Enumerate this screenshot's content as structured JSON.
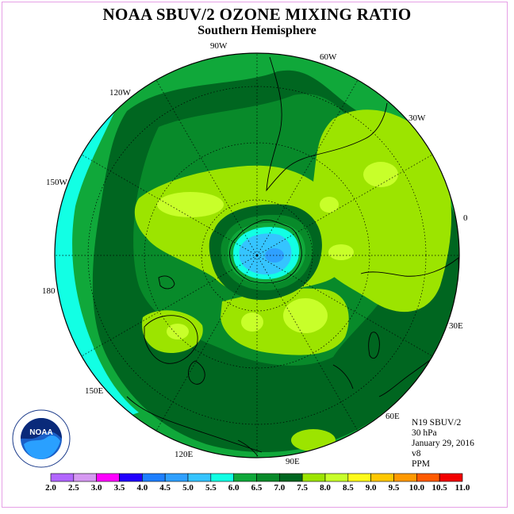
{
  "title": "NOAA SBUV/2 OZONE MIXING RATIO",
  "subtitle": "Southern Hemisphere",
  "longitude_labels": [
    "90W",
    "60W",
    "30W",
    "0",
    "30E",
    "60E",
    "90E",
    "120E",
    "150E",
    "180",
    "150W",
    "120W"
  ],
  "info": {
    "satellite": "N19 SBUV/2",
    "pressure": "30 hPa",
    "date": "January 29, 2016",
    "version": "v8",
    "units": "PPM"
  },
  "logo": {
    "text": "NOAA",
    "ring_text": "NATIONAL OCEANIC AND ATMOSPHERIC ADMINISTRATION · U.S. DEPARTMENT OF COMMERCE"
  },
  "colorbar": {
    "ticks": [
      "2.0",
      "2.5",
      "3.0",
      "3.5",
      "4.0",
      "4.5",
      "5.0",
      "5.5",
      "6.0",
      "6.5",
      "7.0",
      "7.5",
      "8.0",
      "8.5",
      "9.0",
      "9.5",
      "10.0",
      "10.5",
      "11.0"
    ],
    "colors": [
      "#b266ff",
      "#d699f2",
      "#ff00ff",
      "#2200ff",
      "#1e7fff",
      "#2fa0ff",
      "#35c4ff",
      "#12ffe4",
      "#10a83a",
      "#088a2a",
      "#006620",
      "#9ce400",
      "#c8ff2a",
      "#fffa1a",
      "#ffc800",
      "#ff9900",
      "#ff5a00",
      "#f20000",
      "#9a5a3a"
    ]
  },
  "colors": {
    "c55": "#12ffe4",
    "c60": "#10a83a",
    "c65": "#088a2a",
    "c70": "#006620",
    "c75": "#9ce400",
    "c80": "#c8ff2a",
    "c50": "#35c4ff",
    "c45": "#2fa0ff"
  }
}
